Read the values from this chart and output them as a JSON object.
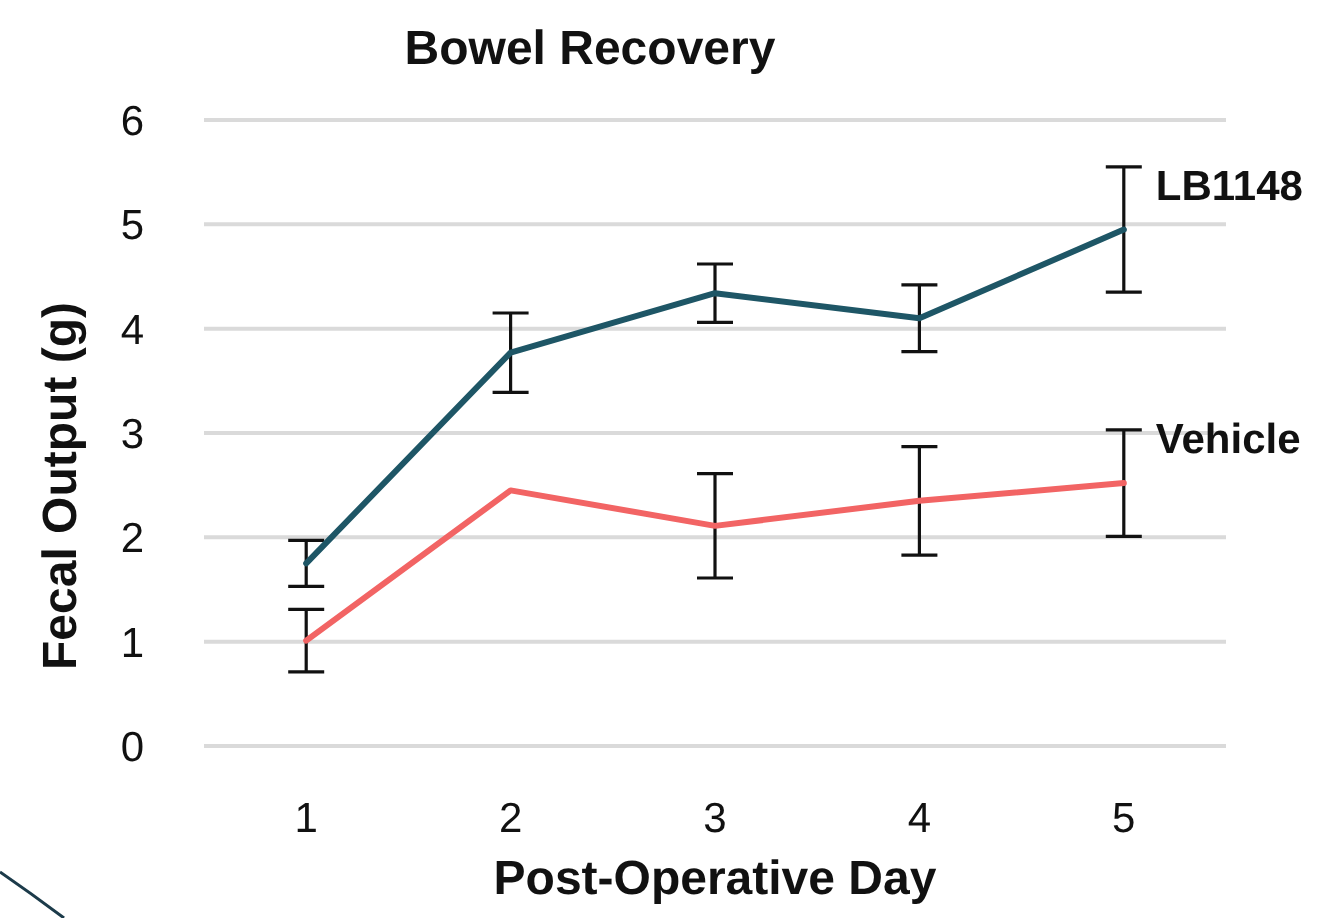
{
  "chart_data": {
    "type": "line",
    "title": "Bowel Recovery",
    "xlabel": "Post-Operative Day",
    "ylabel": "Fecal Output (g)",
    "categories": [
      "1",
      "2",
      "3",
      "4",
      "5"
    ],
    "series": [
      {
        "name": "LB1148",
        "color": "#1e5666",
        "values": [
          1.75,
          3.77,
          4.34,
          4.1,
          4.95
        ],
        "errors": [
          0.22,
          0.38,
          0.28,
          0.32,
          0.6
        ]
      },
      {
        "name": "Vehicle",
        "color": "#f26464",
        "values": [
          1.01,
          2.45,
          2.11,
          2.35,
          2.52
        ],
        "errors": [
          0.3,
          null,
          0.5,
          0.52,
          0.51
        ]
      }
    ],
    "ylim": [
      0,
      6
    ],
    "yticks": [
      0,
      1,
      2,
      3,
      4,
      5,
      6
    ],
    "grid": "y",
    "marker": "none",
    "line_style": "solid"
  }
}
